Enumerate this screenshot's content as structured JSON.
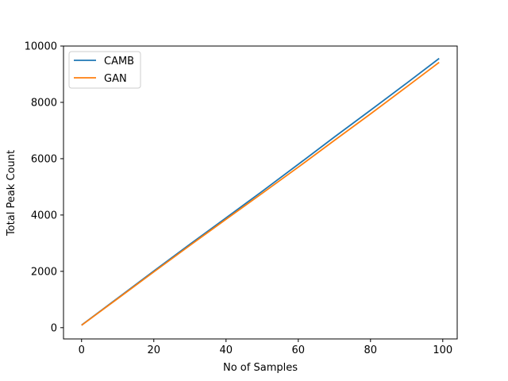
{
  "chart_data": {
    "type": "line",
    "xlabel": "No of Samples",
    "ylabel": "Total Peak Count",
    "xlim": [
      -5,
      104
    ],
    "ylim": [
      -400,
      10000
    ],
    "xticks": [
      0,
      20,
      40,
      60,
      80,
      100
    ],
    "yticks": [
      0,
      2000,
      4000,
      6000,
      8000,
      10000
    ],
    "grid": false,
    "legend_position": "top-left",
    "series": [
      {
        "name": "CAMB",
        "color": "#1f77b4",
        "x": [
          0,
          10,
          20,
          30,
          40,
          50,
          60,
          70,
          80,
          90,
          99
        ],
        "y": [
          90,
          1050,
          2010,
          2960,
          3900,
          4840,
          5800,
          6770,
          7720,
          8680,
          9560
        ]
      },
      {
        "name": "GAN",
        "color": "#ff7f0e",
        "x": [
          0,
          10,
          20,
          30,
          40,
          50,
          60,
          70,
          80,
          90,
          99
        ],
        "y": [
          85,
          1030,
          1980,
          2920,
          3850,
          4770,
          5700,
          6650,
          7590,
          8550,
          9420
        ]
      }
    ]
  }
}
